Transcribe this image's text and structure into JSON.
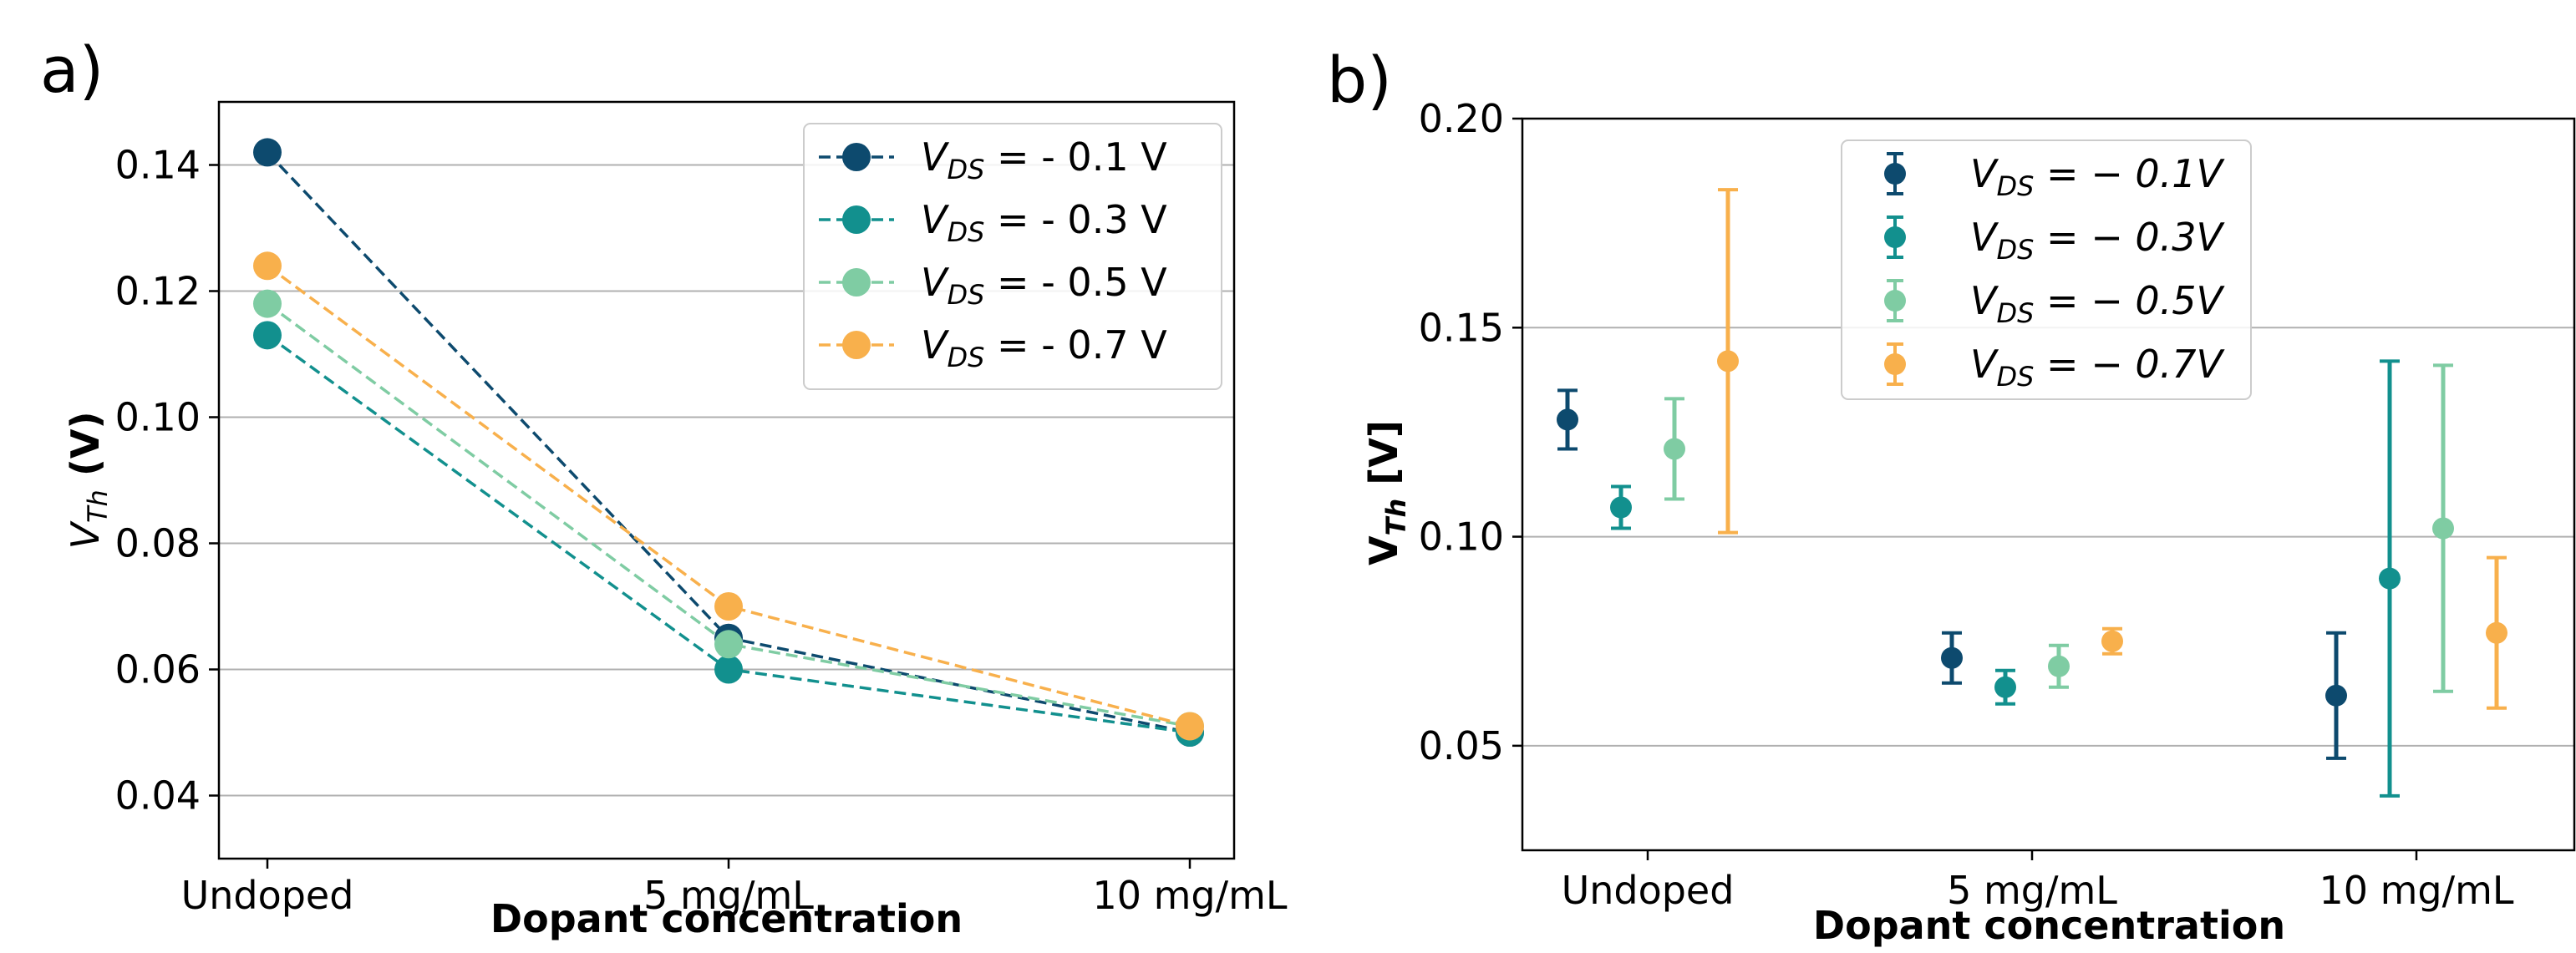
{
  "chart_data": [
    {
      "panel_label": "a)",
      "type": "line",
      "title": "",
      "xlabel": "Dopant concentration",
      "ylabel_main": "V",
      "ylabel_sub": "Th",
      "ylabel_unit": "(V)",
      "categories": [
        "Undoped",
        "5 mg/mL",
        "10 mg/mL"
      ],
      "ylim": [
        0.03,
        0.15
      ],
      "yticks": [
        "0.04",
        "0.06",
        "0.08",
        "0.10",
        "0.12",
        "0.14"
      ],
      "ytick_values": [
        0.04,
        0.06,
        0.08,
        0.1,
        0.12,
        0.14
      ],
      "grid": "horizontal",
      "legend_position": "top-right",
      "series": [
        {
          "name": "- 0.1 V",
          "color": "#0d4a6e",
          "values": [
            0.142,
            0.065,
            0.05
          ]
        },
        {
          "name": "- 0.3 V",
          "color": "#12908e",
          "values": [
            0.113,
            0.06,
            0.05
          ]
        },
        {
          "name": "- 0.5 V",
          "color": "#7fcca3",
          "values": [
            0.118,
            0.064,
            0.051
          ]
        },
        {
          "name": "- 0.7 V",
          "color": "#f8b04c",
          "values": [
            0.124,
            0.07,
            0.051
          ]
        }
      ]
    },
    {
      "panel_label": "b)",
      "type": "scatter",
      "title": "",
      "xlabel": "Dopant concentration",
      "ylabel_main": "V",
      "ylabel_sub": "Th",
      "ylabel_unit": "[V]",
      "categories": [
        "Undoped",
        "5 mg/mL",
        "10 mg/mL"
      ],
      "ylim": [
        0.025,
        0.2
      ],
      "yticks": [
        "0.05",
        "0.10",
        "0.15",
        "0.20"
      ],
      "ytick_values": [
        0.05,
        0.1,
        0.15,
        0.2
      ],
      "grid": "horizontal",
      "legend_position": "top-center",
      "series": [
        {
          "name": "− 0.1V",
          "color": "#0d4a6e",
          "values": [
            0.128,
            0.071,
            0.062
          ],
          "err_low": [
            0.121,
            0.065,
            0.047
          ],
          "err_high": [
            0.135,
            0.077,
            0.077
          ]
        },
        {
          "name": "− 0.3V",
          "color": "#12908e",
          "values": [
            0.107,
            0.064,
            0.09
          ],
          "err_low": [
            0.102,
            0.06,
            0.038
          ],
          "err_high": [
            0.112,
            0.068,
            0.142
          ]
        },
        {
          "name": "− 0.5V",
          "color": "#7fcca3",
          "values": [
            0.121,
            0.069,
            0.102
          ],
          "err_low": [
            0.109,
            0.064,
            0.063
          ],
          "err_high": [
            0.133,
            0.074,
            0.141
          ]
        },
        {
          "name": "− 0.7V",
          "color": "#f8b04c",
          "values": [
            0.142,
            0.075,
            0.077
          ],
          "err_low": [
            0.101,
            0.072,
            0.059
          ],
          "err_high": [
            0.183,
            0.078,
            0.095
          ]
        }
      ]
    }
  ],
  "legend_prefix": "V",
  "legend_prefix_sub": "DS",
  "legend_eq_a": " = ",
  "legend_eq_b": " = "
}
